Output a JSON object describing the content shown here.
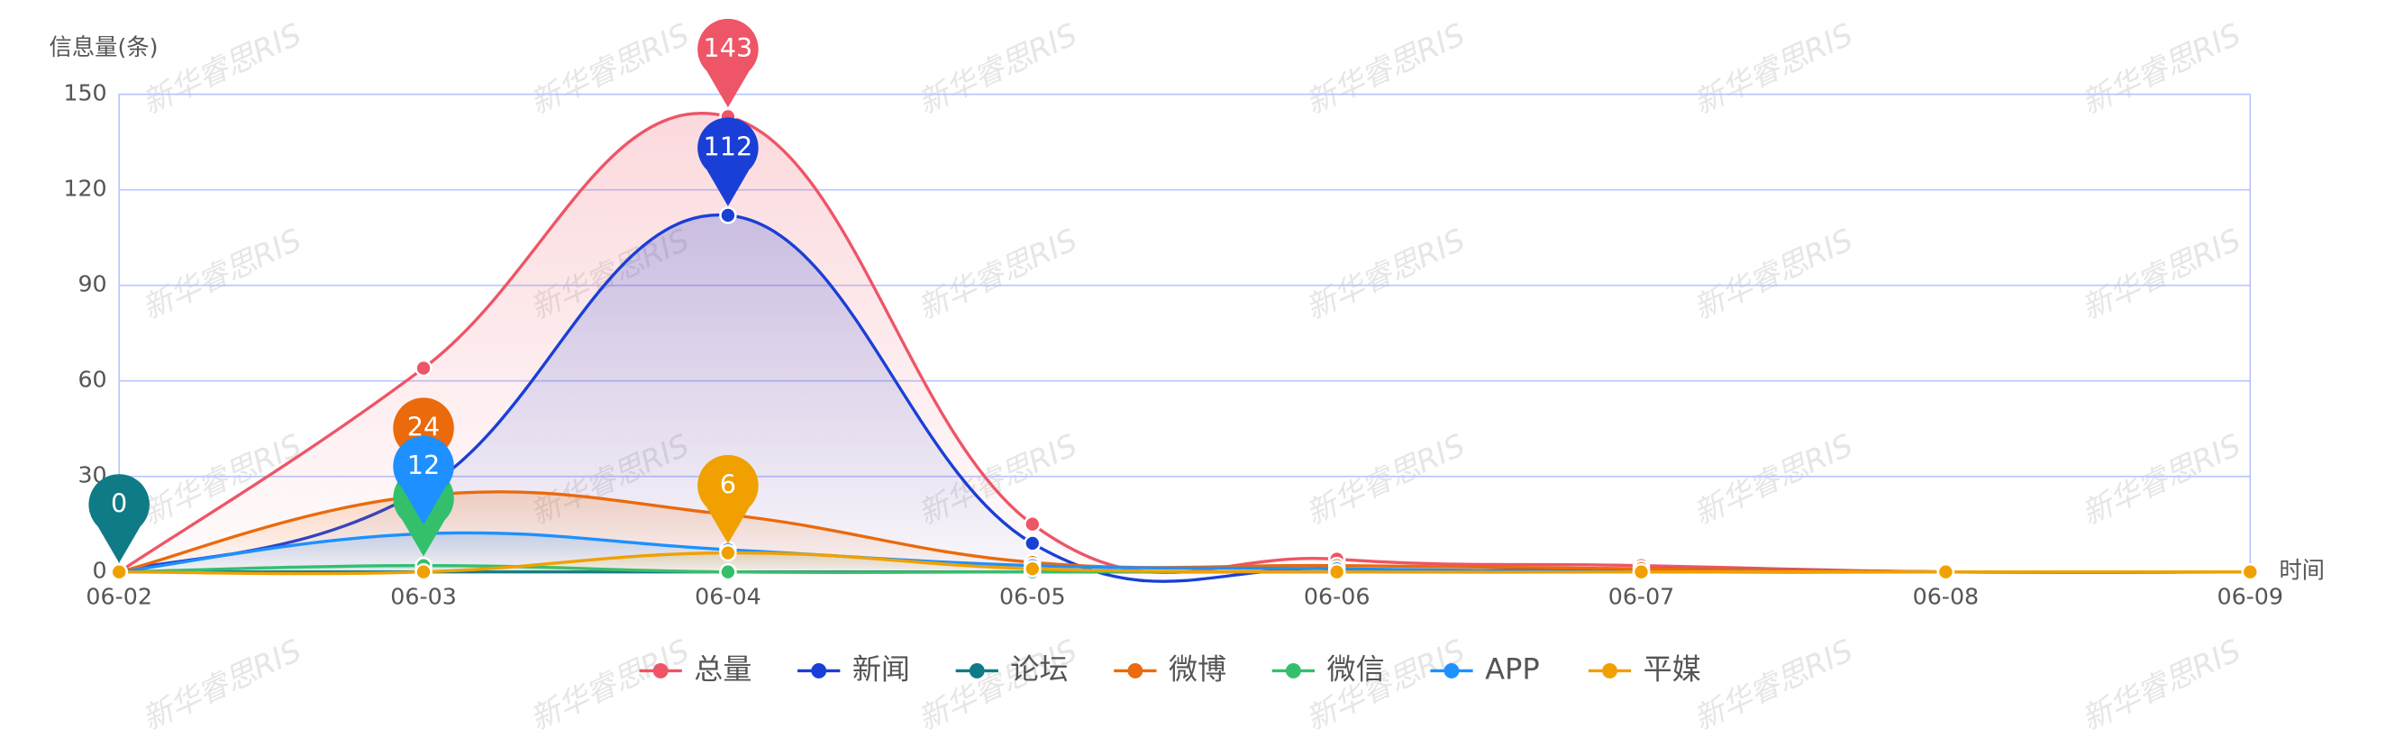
{
  "chart_data": {
    "type": "line",
    "y_axis_label": "信息量(条)",
    "x_axis_label": "时间",
    "watermark": "新华睿思RIS",
    "categories": [
      "06-02",
      "06-03",
      "06-04",
      "06-05",
      "06-06",
      "06-07",
      "06-08",
      "06-09"
    ],
    "ylim": [
      0,
      150
    ],
    "yticks": [
      0,
      30,
      60,
      90,
      120,
      150
    ],
    "grid": true,
    "smooth": true,
    "legend": "bottom",
    "series": [
      {
        "name": "总量",
        "color": "#ee5566",
        "values": [
          0,
          64,
          143,
          15,
          4,
          2,
          0,
          0
        ]
      },
      {
        "name": "新闻",
        "color": "#1a3fd6",
        "values": [
          0,
          26,
          112,
          9,
          1,
          1,
          0,
          0
        ]
      },
      {
        "name": "论坛",
        "color": "#0f7b86",
        "values": [
          0,
          0,
          0,
          0,
          0,
          0,
          0,
          0
        ]
      },
      {
        "name": "微博",
        "color": "#ea6a0c",
        "values": [
          0,
          24,
          18,
          3,
          2,
          1,
          0,
          0
        ]
      },
      {
        "name": "微信",
        "color": "#34c06b",
        "values": [
          0,
          2,
          0,
          0,
          0,
          0,
          0,
          0
        ]
      },
      {
        "name": "APP",
        "color": "#1e90ff",
        "values": [
          0,
          12,
          7,
          2,
          1,
          0,
          0,
          0
        ]
      },
      {
        "name": "平媒",
        "color": "#f0a000",
        "values": [
          0,
          0,
          6,
          1,
          0,
          0,
          0,
          0
        ]
      }
    ]
  }
}
